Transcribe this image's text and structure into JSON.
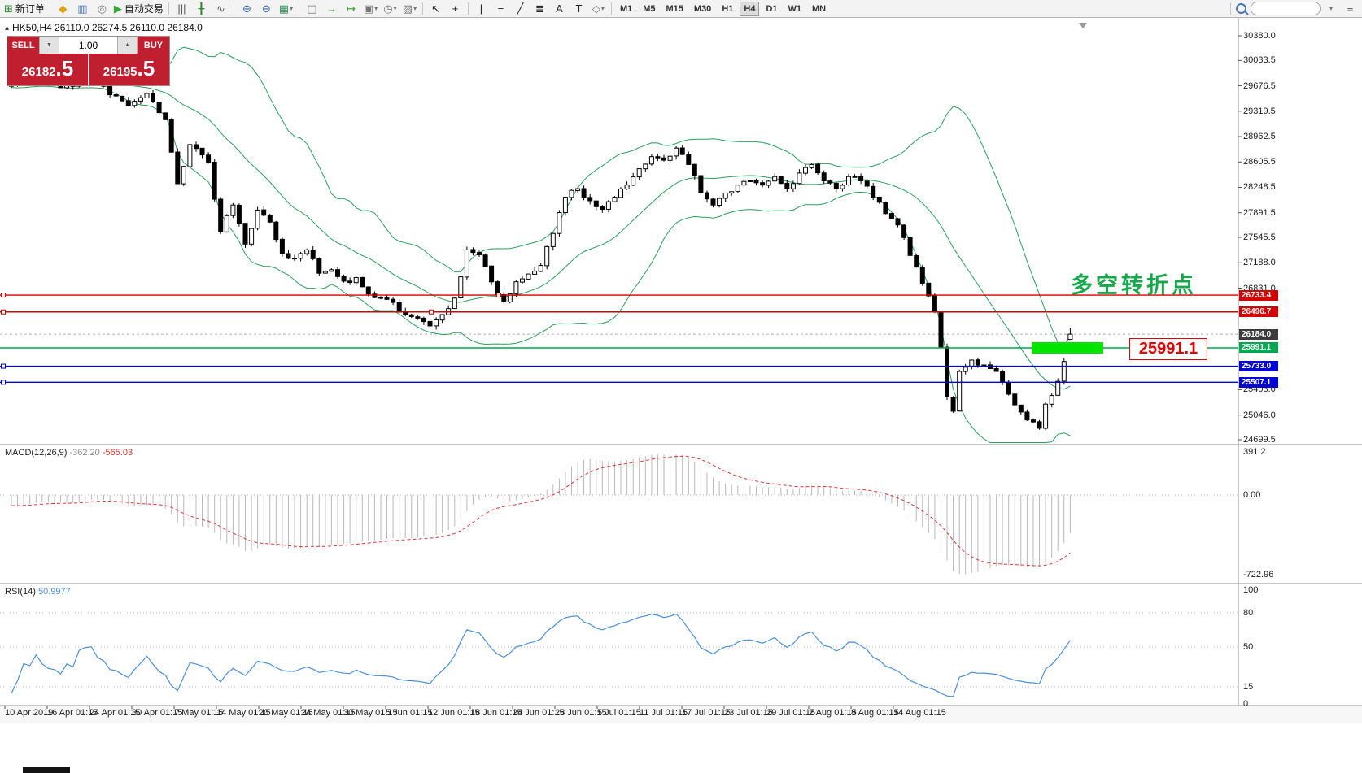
{
  "header": {
    "symbol_line": "HK50,H4  26110.0 26274.5 26110.0 26184.0"
  },
  "toolbar": {
    "items": [
      {
        "icon": "new-order-icon",
        "label": "新订单",
        "name": "new-order-button"
      },
      {
        "sep": true
      },
      {
        "icon": "market-watch-icon",
        "name": "market-watch-button"
      },
      {
        "icon": "data-window-icon",
        "name": "data-window-button"
      },
      {
        "icon": "navigator-icon",
        "name": "navigator-button"
      },
      {
        "icon": "autotrade-icon",
        "label": "自动交易",
        "name": "autotrading-button"
      },
      {
        "sep": true
      },
      {
        "icon": "bar-chart-icon",
        "name": "bar-chart-button"
      },
      {
        "icon": "candlestick-icon",
        "name": "candlestick-chart-button"
      },
      {
        "icon": "line-chart-icon",
        "name": "line-chart-button"
      },
      {
        "sep": true
      },
      {
        "icon": "zoom-in-icon",
        "name": "zoom-in-button"
      },
      {
        "icon": "zoom-out-icon",
        "name": "zoom-out-button"
      },
      {
        "icon": "indicators-icon",
        "name": "indicators-button",
        "dropdown": true
      },
      {
        "sep": true
      },
      {
        "icon": "tile-windows-icon",
        "name": "tile-windows-button"
      },
      {
        "icon": "auto-scroll-icon",
        "name": "auto-scroll-button"
      },
      {
        "icon": "chart-shift-icon",
        "name": "chart-shift-button"
      },
      {
        "icon": "new-chart-icon",
        "name": "new-chart-button",
        "dropdown": true
      },
      {
        "icon": "period-icon",
        "name": "periods-button",
        "dropdown": true
      },
      {
        "icon": "template-icon",
        "name": "templates-button",
        "dropdown": true
      },
      {
        "sep": true
      },
      {
        "icon": "cursor-icon",
        "name": "cursor-button"
      },
      {
        "icon": "crosshair-icon",
        "name": "crosshair-button"
      },
      {
        "sep": true
      },
      {
        "icon": "vline-icon",
        "name": "vertical-line-button"
      },
      {
        "icon": "hline-icon",
        "name": "horizontal-line-button"
      },
      {
        "icon": "trendline-icon",
        "name": "trendline-button"
      },
      {
        "icon": "fibo-icon",
        "name": "fibonacci-button"
      },
      {
        "icon": "text-icon",
        "name": "text-button"
      },
      {
        "icon": "label-icon",
        "name": "text-label-button"
      },
      {
        "icon": "shapes-icon",
        "name": "shapes-button",
        "dropdown": true
      },
      {
        "sep": true
      }
    ],
    "timeframes": [
      "M1",
      "M5",
      "M15",
      "M30",
      "H1",
      "H4",
      "D1",
      "W1",
      "MN"
    ],
    "active_timeframe": "H4"
  },
  "order_panel": {
    "sell_label": "SELL",
    "buy_label": "BUY",
    "volume": "1.00",
    "sell_price": "26182",
    "sell_price_frac": ".5",
    "buy_price": "26195",
    "buy_price_frac": ".5"
  },
  "overlays": {
    "annotation_text": "多空转折点",
    "price_callout_text": "25991.1",
    "highlight_color": "#00e400"
  },
  "chart_data": {
    "type": "candlestick",
    "symbol": "HK50",
    "timeframe": "H4",
    "ohlc": {
      "open": 26110.0,
      "high": 26274.5,
      "low": 26110.0,
      "close": 26184.0
    },
    "bars": 173,
    "seed": 20190814,
    "noise_amp": 45,
    "wick_amp": 55,
    "pre_bars": 40,
    "pre_from": 30300,
    "anchors": [
      [
        0,
        29700
      ],
      [
        4,
        29820
      ],
      [
        8,
        29650
      ],
      [
        13,
        29800
      ],
      [
        16,
        29550
      ],
      [
        19,
        29400
      ],
      [
        22,
        29570
      ],
      [
        25,
        29200
      ],
      [
        27,
        28300
      ],
      [
        29,
        28850
      ],
      [
        32,
        28600
      ],
      [
        34,
        27620
      ],
      [
        36,
        28000
      ],
      [
        38,
        27450
      ],
      [
        40,
        27930
      ],
      [
        42,
        27760
      ],
      [
        44,
        27320
      ],
      [
        46,
        27250
      ],
      [
        48,
        27370
      ],
      [
        50,
        27040
      ],
      [
        52,
        27090
      ],
      [
        54,
        26930
      ],
      [
        56,
        26980
      ],
      [
        58,
        26750
      ],
      [
        60,
        26690
      ],
      [
        62,
        26630
      ],
      [
        64,
        26460
      ],
      [
        66,
        26410
      ],
      [
        68,
        26300
      ],
      [
        70,
        26460
      ],
      [
        72,
        26690
      ],
      [
        74,
        27370
      ],
      [
        76,
        27300
      ],
      [
        78,
        26920
      ],
      [
        80,
        26640
      ],
      [
        82,
        26920
      ],
      [
        84,
        27030
      ],
      [
        86,
        27150
      ],
      [
        88,
        27600
      ],
      [
        90,
        28110
      ],
      [
        92,
        28230
      ],
      [
        94,
        28060
      ],
      [
        96,
        27940
      ],
      [
        98,
        28110
      ],
      [
        100,
        28280
      ],
      [
        102,
        28510
      ],
      [
        104,
        28680
      ],
      [
        106,
        28630
      ],
      [
        108,
        28800
      ],
      [
        110,
        28570
      ],
      [
        112,
        28170
      ],
      [
        114,
        28000
      ],
      [
        116,
        28170
      ],
      [
        118,
        28280
      ],
      [
        120,
        28340
      ],
      [
        122,
        28280
      ],
      [
        124,
        28400
      ],
      [
        126,
        28230
      ],
      [
        128,
        28450
      ],
      [
        130,
        28570
      ],
      [
        132,
        28340
      ],
      [
        134,
        28230
      ],
      [
        136,
        28400
      ],
      [
        138,
        28340
      ],
      [
        140,
        28110
      ],
      [
        142,
        27880
      ],
      [
        144,
        27720
      ],
      [
        146,
        27290
      ],
      [
        148,
        26900
      ],
      [
        150,
        26500
      ],
      [
        151,
        26000
      ],
      [
        152,
        25300
      ],
      [
        153,
        25100
      ],
      [
        154,
        25660
      ],
      [
        156,
        25820
      ],
      [
        158,
        25750
      ],
      [
        160,
        25660
      ],
      [
        162,
        25340
      ],
      [
        164,
        25090
      ],
      [
        166,
        24950
      ],
      [
        167,
        24860
      ],
      [
        168,
        25200
      ],
      [
        170,
        25520
      ],
      [
        171,
        25800
      ],
      [
        172,
        26184
      ]
    ],
    "y_ticks": [
      30380.0,
      30033.5,
      29676.5,
      29319.5,
      28962.5,
      28605.5,
      28248.5,
      27891.5,
      27545.5,
      27188.0,
      26831.0,
      25403.0,
      25046.0,
      24699.5
    ],
    "hlines": [
      {
        "price": 26733.4,
        "label": "26733.4",
        "color": "#d40000",
        "handle_xs": [
          4,
          613
        ]
      },
      {
        "price": 26496.7,
        "label": "26496.7",
        "color": "#d40000",
        "handle_xs": [
          4,
          530
        ]
      },
      {
        "price": 25991.1,
        "label": "25991.1",
        "color": "#00a651",
        "handle_xs": []
      },
      {
        "price": 25733.0,
        "label": "25733.0",
        "color": "#0000d8",
        "handle_xs": [
          4
        ]
      },
      {
        "price": 25507.1,
        "label": "25507.1",
        "color": "#0000d8",
        "handle_xs": [
          4
        ]
      }
    ],
    "current_price": {
      "price": 26184.0,
      "label": "26184.0",
      "badge_color": "#3c3c3c"
    },
    "bollinger": {
      "period": 20,
      "deviation": 2,
      "color": "#2aa05a"
    },
    "macd": {
      "label": "MACD(12,26,9)",
      "value": "-362.20",
      "signal_value": "-565.03",
      "fast": 12,
      "slow": 26,
      "signal": 9,
      "axis_max": 391.2,
      "axis_min": -722.96,
      "axis_labels": [
        "391.2",
        "0.00",
        "-722.96"
      ],
      "hist_color": "#b9b9b9",
      "signal_color": "#e03535"
    },
    "rsi": {
      "label": "RSI(14)",
      "value": "50.9977",
      "period": 14,
      "axis_labels": [
        "100",
        "80",
        "50",
        "15",
        "0"
      ],
      "levels": [
        80,
        50,
        15
      ],
      "color": "#4a90d9"
    },
    "time_labels": [
      "10 Apr 2019",
      "16 Apr 01:15",
      "24 Apr 01:15",
      "30 Apr 01:15",
      "7 May 01:15",
      "14 May 01:15",
      "20 May 01:15",
      "24 May 01:15",
      "30 May 01:15",
      "5 Jun 01:15",
      "12 Jun 01:15",
      "18 Jun 01:15",
      "24 Jun 01:15",
      "28 Jun 01:15",
      "5 Jul 01:15",
      "11 Jul 01:15",
      "17 Jul 01:15",
      "23 Jul 01:15",
      "29 Jul 01:15",
      "2 Aug 01:15",
      "8 Aug 01:15",
      "14 Aug 01:15"
    ]
  }
}
